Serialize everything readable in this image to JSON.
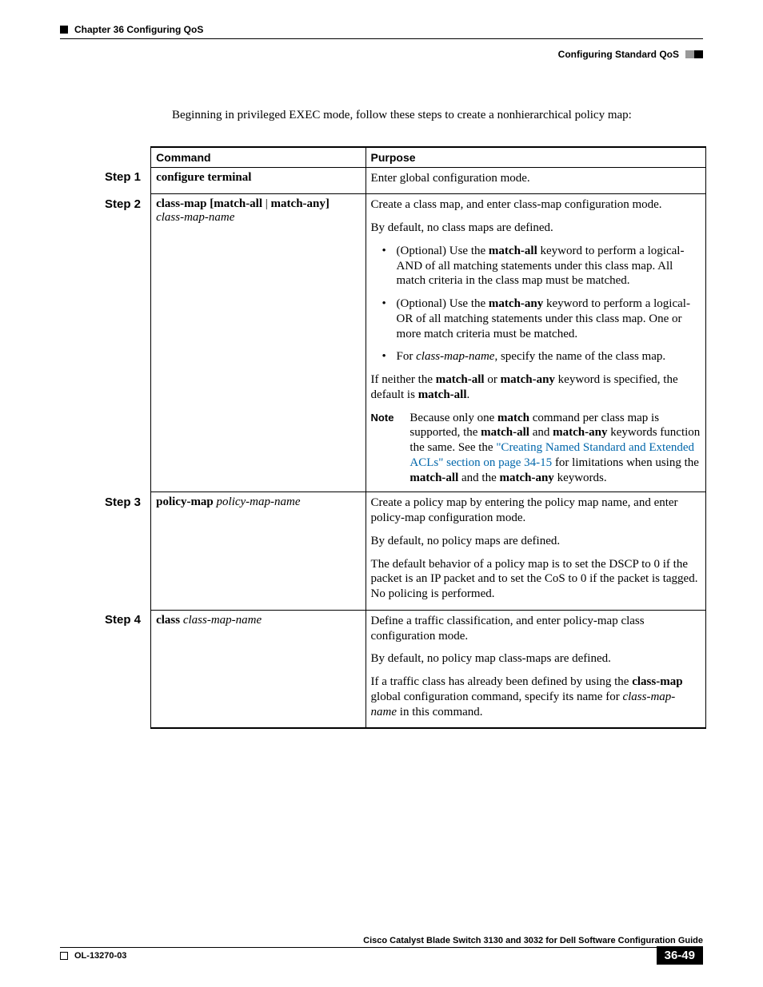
{
  "header": {
    "left": "Chapter 36    Configuring QoS",
    "right": "Configuring Standard QoS"
  },
  "intro": "Beginning in privileged EXEC mode, follow these steps to create a nonhierarchical policy map:",
  "table": {
    "head_command": "Command",
    "head_purpose": "Purpose",
    "steps": {
      "s1": {
        "label": "Step 1",
        "cmd_b1": "configure terminal",
        "p1": "Enter global configuration mode."
      },
      "s2": {
        "label": "Step 2",
        "cmd_b1": "class-map",
        "cmd_b2": "[match-all",
        "cmd_pipe": " | ",
        "cmd_b3": "match-any]",
        "cmd_i1": "class-map-name",
        "p1": "Create a class map, and enter class-map configuration mode.",
        "p2": "By default, no class maps are defined.",
        "li1_a": "(Optional) Use the ",
        "li1_b": "match-all",
        "li1_c": " keyword to perform a logical-AND of all matching statements under this class map. All match criteria in the class map must be matched.",
        "li2_a": "(Optional) Use the ",
        "li2_b": "match-any",
        "li2_c": " keyword to perform a logical-OR of all matching statements under this class map. One or more match criteria must be matched.",
        "li3_a": "For ",
        "li3_i": "class-map-name",
        "li3_b": ", specify the name of the class map.",
        "p3_a": "If neither the ",
        "p3_b1": "match-all",
        "p3_b": " or ",
        "p3_b2": "match-any",
        "p3_c": " keyword is specified, the default is ",
        "p3_b3": "match-all",
        "p3_d": ".",
        "note_label": "Note",
        "note_a": "Because only one ",
        "note_b1": "match",
        "note_b": " command per class map is supported, the ",
        "note_b2": "match-all",
        "note_c": " and ",
        "note_b3": "match-any",
        "note_d": " keywords function the same. See the ",
        "note_link1": "\"Creating Named Standard and Extended ACLs\" section on page 34-15",
        "note_e": " for limitations when using the ",
        "note_b4": "match-all",
        "note_f": " and the ",
        "note_b5": "match-any",
        "note_g": " keywords."
      },
      "s3": {
        "label": "Step 3",
        "cmd_b1": "policy-map",
        "cmd_i1": "policy-map-name",
        "p1": "Create a policy map by entering the policy map name, and enter policy-map configuration mode.",
        "p2": "By default, no policy maps are defined.",
        "p3": "The default behavior of a policy map is to set the DSCP to 0 if the packet is an IP packet and to set the CoS to 0 if the packet is tagged. No policing is performed."
      },
      "s4": {
        "label": "Step 4",
        "cmd_b1": "class",
        "cmd_i1": "class-map-name",
        "p1": "Define a traffic classification, and enter policy-map class configuration mode.",
        "p2": "By default, no policy map class-maps are defined.",
        "p3_a": "If a traffic class has already been defined by using the ",
        "p3_b1": "class-map",
        "p3_b": " global configuration command, specify its name for ",
        "p3_i1": "class-map-name",
        "p3_c": " in this command."
      }
    }
  },
  "footer": {
    "title": "Cisco Catalyst Blade Switch 3130 and 3032 for Dell Software Configuration Guide",
    "left": "OL-13270-03",
    "page": "36-49"
  },
  "colors": {
    "link": "#0066aa"
  }
}
